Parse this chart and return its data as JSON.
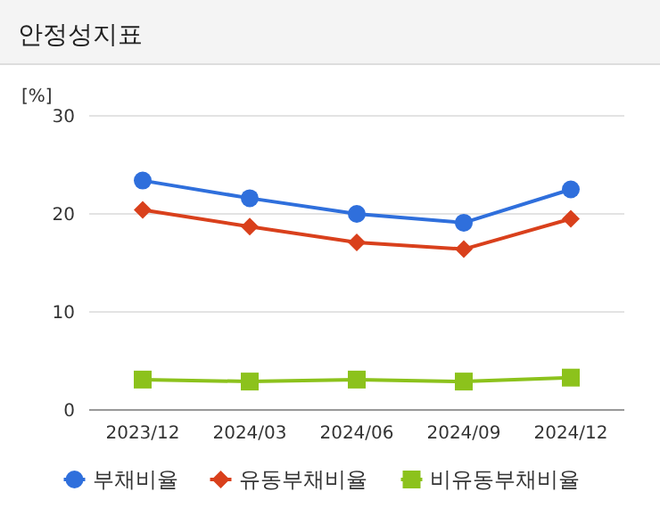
{
  "chart_data": {
    "type": "line",
    "title": "안정성지표",
    "ylabel": "[%]",
    "categories": [
      "2023/12",
      "2024/03",
      "2024/06",
      "2024/09",
      "2024/12"
    ],
    "series": [
      {
        "name": "부채비율",
        "color": "#2f6fdc",
        "marker": "circle",
        "values": [
          23.4,
          21.6,
          20.0,
          19.1,
          22.5
        ]
      },
      {
        "name": "유동부채비율",
        "color": "#d9401c",
        "marker": "diamond",
        "values": [
          20.4,
          18.7,
          17.1,
          16.4,
          19.5
        ]
      },
      {
        "name": "비유동부채비율",
        "color": "#8cc21c",
        "marker": "square",
        "values": [
          3.1,
          2.9,
          3.1,
          2.9,
          3.3
        ]
      }
    ],
    "ylim": [
      0,
      30
    ],
    "yticks": [
      0,
      10,
      20,
      30
    ],
    "grid": "y",
    "legend": "bottom"
  }
}
